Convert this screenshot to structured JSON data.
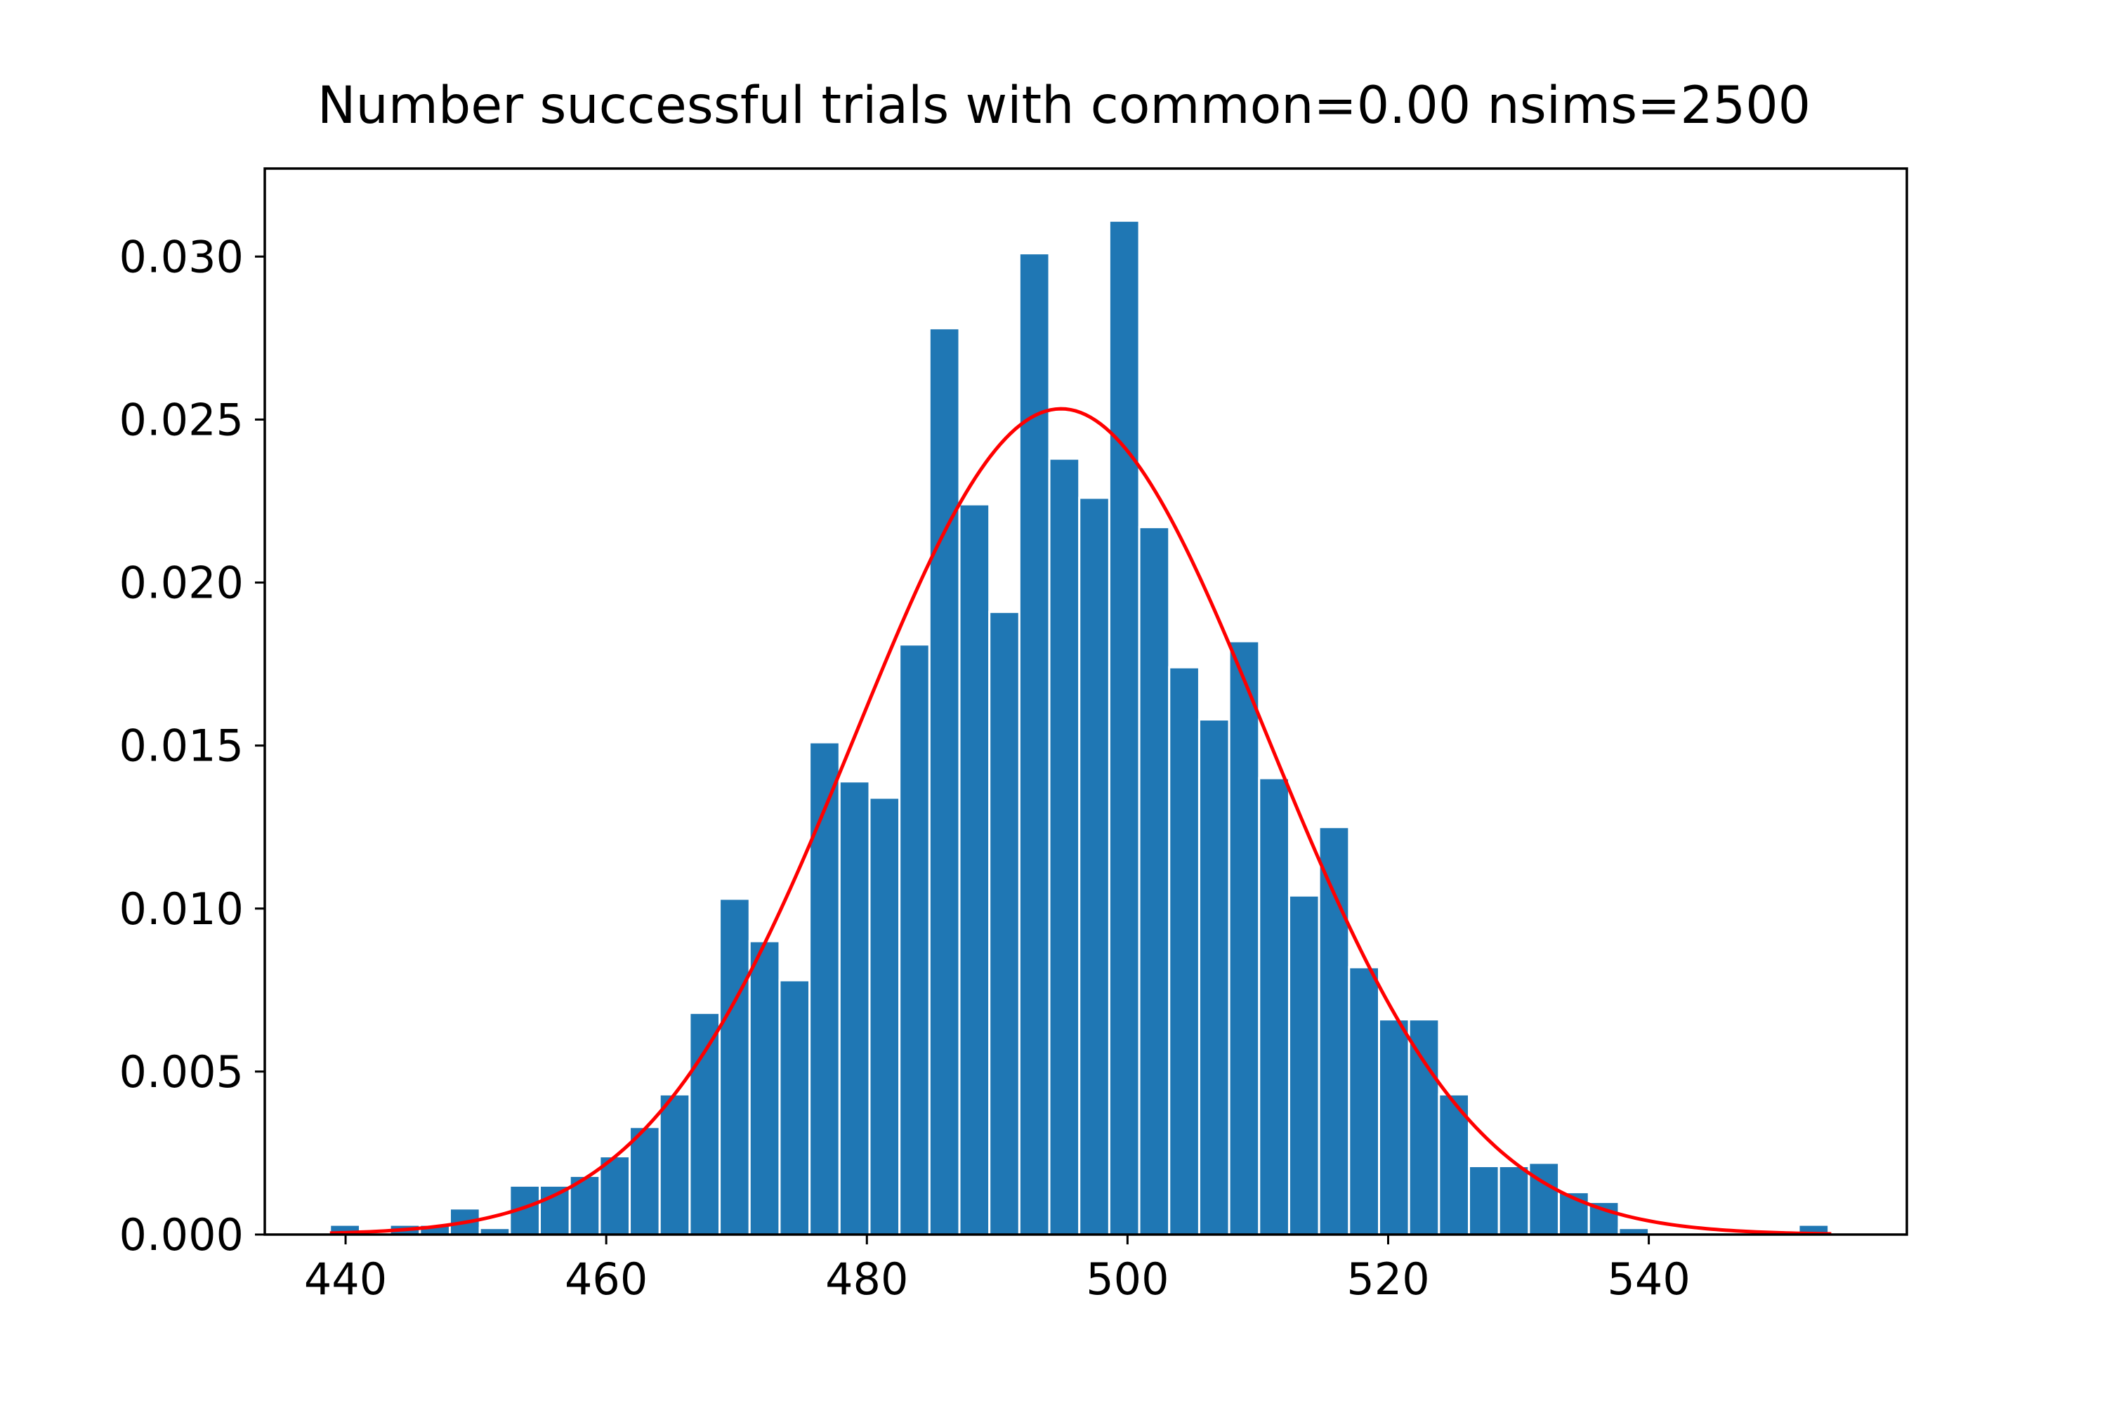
{
  "chart_data": {
    "type": "bar",
    "title": "Number successful trials with common=0.00 nsims=2500",
    "xlabel": "",
    "ylabel": "",
    "xlim": [
      433.8,
      559.8
    ],
    "ylim": [
      0,
      0.0327
    ],
    "bin_start": 438.8,
    "bin_width": 2.3,
    "values": [
      0.0003,
      0,
      0.0003,
      0.0003,
      0.0008,
      0.0002,
      0.0015,
      0.0015,
      0.0018,
      0.0024,
      0.0033,
      0.0043,
      0.0068,
      0.0103,
      0.009,
      0.0078,
      0.0151,
      0.0139,
      0.0134,
      0.0181,
      0.0278,
      0.0224,
      0.0191,
      0.0301,
      0.0238,
      0.0226,
      0.0311,
      0.0217,
      0.0174,
      0.0158,
      0.0182,
      0.014,
      0.0104,
      0.0125,
      0.0082,
      0.0066,
      0.0066,
      0.0043,
      0.0021,
      0.0021,
      0.0022,
      0.0013,
      0.001,
      0.0002,
      0,
      0,
      0,
      0,
      0,
      0.0003
    ],
    "xticks": [
      440,
      460,
      480,
      500,
      520,
      540
    ],
    "xtick_labels": [
      "440",
      "460",
      "480",
      "500",
      "520",
      "540"
    ],
    "yticks": [
      0,
      0.005,
      0.01,
      0.015,
      0.02,
      0.025,
      0.03
    ],
    "ytick_labels": [
      "0.000",
      "0.005",
      "0.010",
      "0.015",
      "0.020",
      "0.025",
      "0.030"
    ],
    "fit_curve": {
      "type": "normal",
      "mean": 494.9,
      "std": 15.75,
      "x_range": [
        438.8,
        554.0
      ]
    },
    "grid": false,
    "colors": {
      "bars": "#1f77b4",
      "bar_edge": "#ffffff",
      "fit_line": "#ff0000",
      "axes": "#000000"
    }
  }
}
